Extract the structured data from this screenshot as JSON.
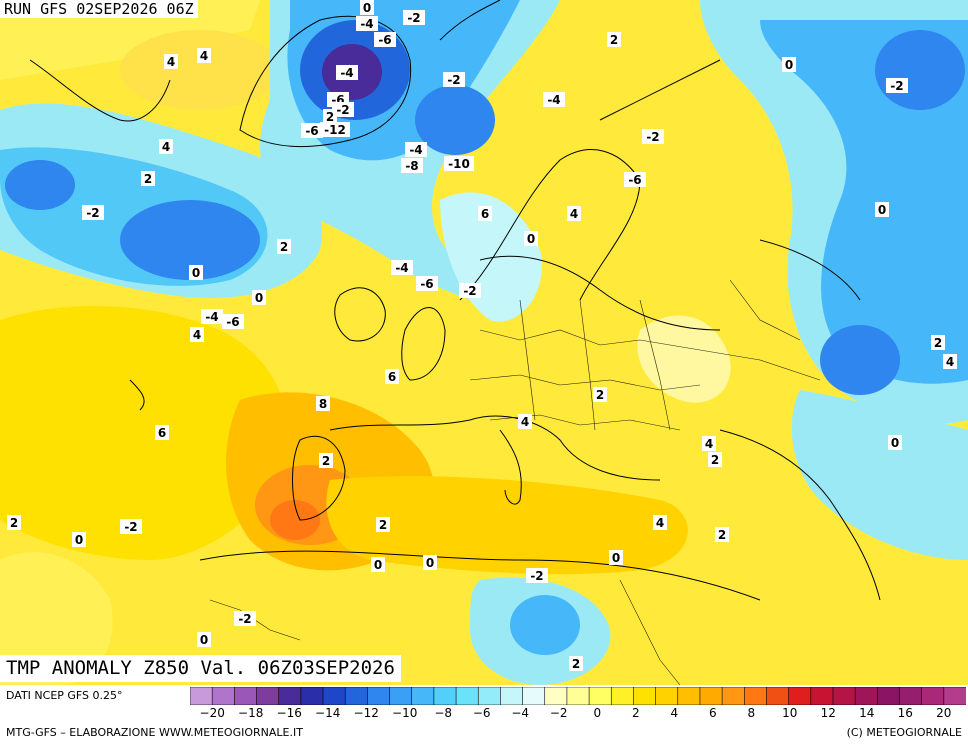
{
  "header": {
    "run": "RUN GFS 02SEP2026 06Z"
  },
  "title": "TMP ANOMALY Z850 Val. 06Z03SEP2026",
  "legend": {
    "source_label": "DATI NCEP GFS 0.25°",
    "tick_labels": [
      "−20",
      "−18",
      "−16",
      "−14",
      "−12",
      "−10",
      "−8",
      "−6",
      "−4",
      "−2",
      "0",
      "2",
      "4",
      "6",
      "8",
      "10",
      "12",
      "14",
      "16",
      "20"
    ],
    "colors": [
      "#c89adc",
      "#b074cc",
      "#9b57b8",
      "#7e3d9c",
      "#4a2b9a",
      "#2a2ea8",
      "#1e46c8",
      "#2266dc",
      "#2e86ee",
      "#3aa0f6",
      "#46b8fa",
      "#52d0fa",
      "#6ae2fa",
      "#92ecfa",
      "#c4f6fa",
      "#e6fcfc",
      "#ffffc4",
      "#ffff96",
      "#ffff64",
      "#fff028",
      "#ffe100",
      "#ffd200",
      "#ffbe00",
      "#ffaa00",
      "#ff9614",
      "#ff7814",
      "#f05014",
      "#e01e1e",
      "#c81432",
      "#b41446",
      "#a0145a",
      "#8c1464",
      "#961e6e",
      "#aa2878",
      "#b43c8c"
    ]
  },
  "footer": {
    "left": "MTG-GFS – ELABORAZIONE WWW.METEOGIORNALE.IT",
    "right": "(C) METEOGIORNALE"
  },
  "map_labels": [
    "0",
    "-4",
    "-2",
    "-6",
    "4",
    "4",
    "2",
    "0",
    "-2",
    "-4",
    "-6",
    "-2",
    "2",
    "-6",
    "-12",
    "-10",
    "-8",
    "-4",
    "-2",
    "-4",
    "-2",
    "-6",
    "4",
    "6",
    "4",
    "2",
    "-2",
    "0",
    "0",
    "2",
    "0",
    "-4",
    "-6",
    "-2",
    "-4",
    "-6",
    "4",
    "0",
    "2",
    "4",
    "6",
    "2",
    "8",
    "6",
    "2",
    "4",
    "4",
    "2",
    "0",
    "2",
    "-2",
    "0",
    "2",
    "4",
    "2",
    "0",
    "0",
    "0",
    "-2",
    "-2",
    "0",
    "2"
  ],
  "colors": {
    "positive": "#ffe100",
    "negative": "#3aa0f6",
    "background": "#ffffff"
  }
}
